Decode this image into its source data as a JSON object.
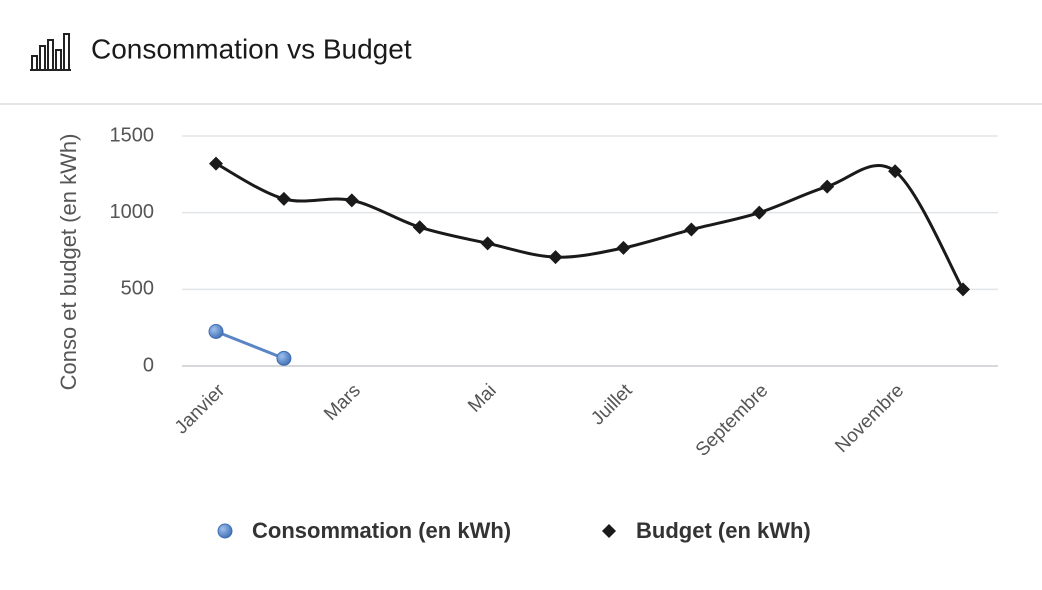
{
  "header": {
    "title": "Consommation vs Budget"
  },
  "chart_data": {
    "type": "line",
    "ylabel": "Conso et budget (en kWh)",
    "categories": [
      "Janvier",
      null,
      "Mars",
      null,
      "Mai",
      null,
      "Juillet",
      null,
      "Septembre",
      null,
      "Novembre",
      null
    ],
    "series": [
      {
        "name": "Consommation (en kWh)",
        "color": "#5b86c5",
        "marker": "circle",
        "smooth": false,
        "values": [
          225,
          50,
          null,
          null,
          null,
          null,
          null,
          null,
          null,
          null,
          null,
          null
        ]
      },
      {
        "name": "Budget (en kWh)",
        "color": "#1a1a1a",
        "marker": "diamond",
        "smooth": true,
        "values": [
          1320,
          1090,
          1080,
          905,
          800,
          710,
          770,
          890,
          1000,
          1170,
          1270,
          500
        ]
      }
    ],
    "ylim": [
      0,
      1500
    ],
    "yticks": [
      0,
      500,
      1000,
      1500
    ],
    "grid": true,
    "legend": "bottom"
  }
}
